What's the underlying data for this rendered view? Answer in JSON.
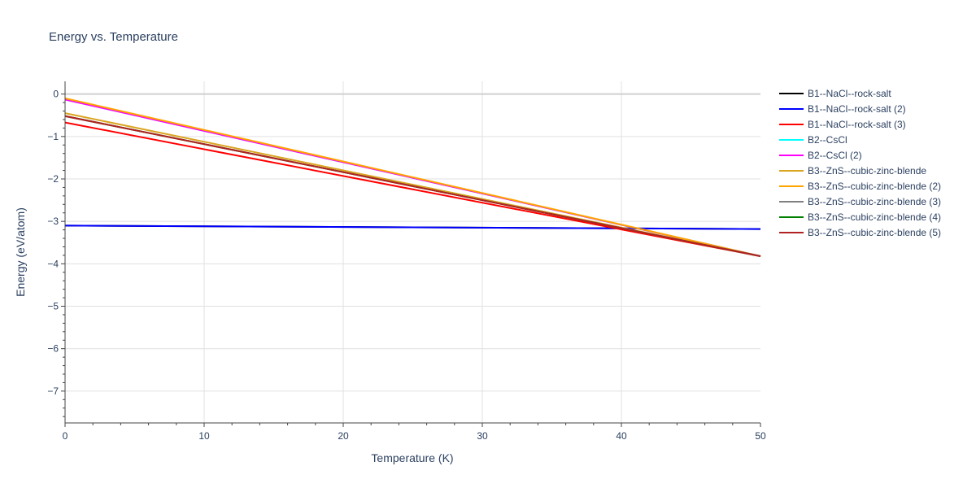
{
  "chart_data": {
    "type": "line",
    "title": "Energy vs. Temperature",
    "xlabel": "Temperature (K)",
    "ylabel": "Energy (eV/atom)",
    "xlim": [
      0,
      50
    ],
    "ylim": [
      -7.75,
      0.3
    ],
    "xticks": [
      0,
      10,
      20,
      30,
      40,
      50
    ],
    "xtick_labels": [
      "0",
      "10",
      "20",
      "30",
      "40",
      "50"
    ],
    "yticks": [
      0,
      -1,
      -2,
      -3,
      -4,
      -5,
      -6,
      -7
    ],
    "ytick_labels": [
      "0",
      "−1",
      "−2",
      "−3",
      "−4",
      "−5",
      "−6",
      "−7"
    ],
    "grid": true,
    "legend_position": "right",
    "series": [
      {
        "name": "B1--NaCl--rock-salt",
        "color": "#000000",
        "x": [
          0,
          50
        ],
        "y": [
          -3.1,
          -3.18
        ]
      },
      {
        "name": "B1--NaCl--rock-salt (2)",
        "color": "#0000ff",
        "x": [
          0,
          50
        ],
        "y": [
          -3.1,
          -3.18
        ]
      },
      {
        "name": "B1--NaCl--rock-salt (3)",
        "color": "#ff0000",
        "x": [
          0,
          50
        ],
        "y": [
          -0.67,
          -3.82
        ]
      },
      {
        "name": "B2--CsCl",
        "color": "#00ffff",
        "x": [
          0,
          50
        ],
        "y": [
          -0.13,
          -3.82
        ]
      },
      {
        "name": "B2--CsCl (2)",
        "color": "#ff00ff",
        "x": [
          0,
          50
        ],
        "y": [
          -0.13,
          -3.82
        ]
      },
      {
        "name": "B3--ZnS--cubic-zinc-blende",
        "color": "#daa520",
        "x": [
          0,
          50
        ],
        "y": [
          -0.45,
          -3.82
        ]
      },
      {
        "name": "B3--ZnS--cubic-zinc-blende (2)",
        "color": "#ffa500",
        "x": [
          0,
          50
        ],
        "y": [
          -0.1,
          -3.82
        ]
      },
      {
        "name": "B3--ZnS--cubic-zinc-blende (3)",
        "color": "#808080",
        "x": [
          0,
          50
        ],
        "y": [
          -0.52,
          -3.82
        ]
      },
      {
        "name": "B3--ZnS--cubic-zinc-blende (4)",
        "color": "#008000",
        "x": [
          0,
          50
        ],
        "y": [
          -0.52,
          -3.82
        ]
      },
      {
        "name": "B3--ZnS--cubic-zinc-blende (5)",
        "color": "#b22222",
        "x": [
          0,
          50
        ],
        "y": [
          -0.52,
          -3.82
        ]
      }
    ]
  }
}
